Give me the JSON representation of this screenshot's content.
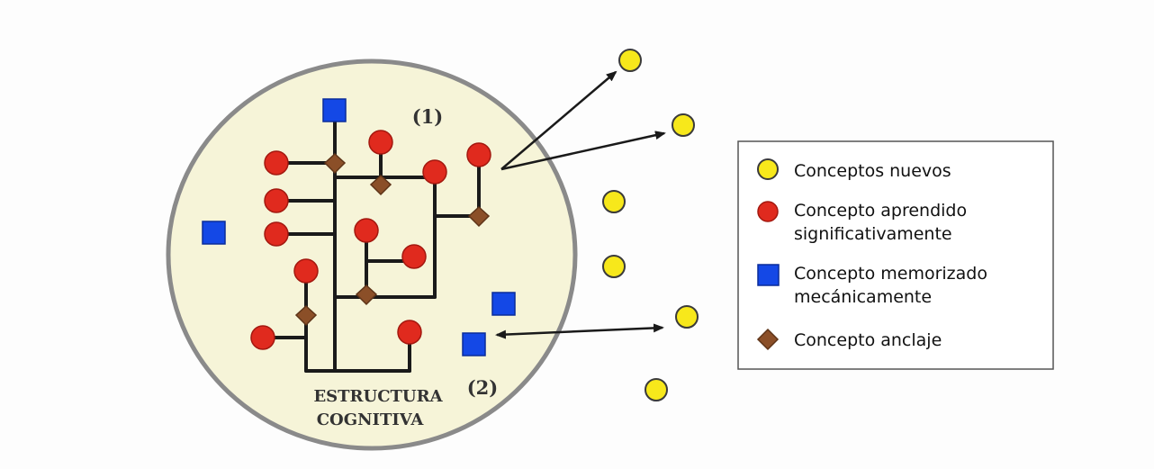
{
  "diagram": {
    "circle_label_line1": "ESTRUCTURA",
    "circle_label_line2": "COGNITIVA",
    "marker_1": "(1)",
    "marker_2": "(2)"
  },
  "legend": {
    "items": [
      {
        "shape": "yellow-circle",
        "label_line1": "Conceptos nuevos",
        "label_line2": ""
      },
      {
        "shape": "red-circle",
        "label_line1": "Concepto aprendido",
        "label_line2": "significativamente"
      },
      {
        "shape": "blue-square",
        "label_line1": "Concepto memorizado",
        "label_line2": "mecánicamente"
      },
      {
        "shape": "brown-diamond",
        "label_line1": "Concepto anclaje",
        "label_line2": ""
      }
    ]
  },
  "colors": {
    "background": "#fdfdfd",
    "circle_fill": "#f6f4d8",
    "circle_stroke": "#8a8a8a",
    "new_concept": "#f7e81b",
    "learned_concept": "#e02a1e",
    "memorized_concept": "#1448e6",
    "anchor_concept": "#8b4f28",
    "line": "#1a1a1a"
  }
}
